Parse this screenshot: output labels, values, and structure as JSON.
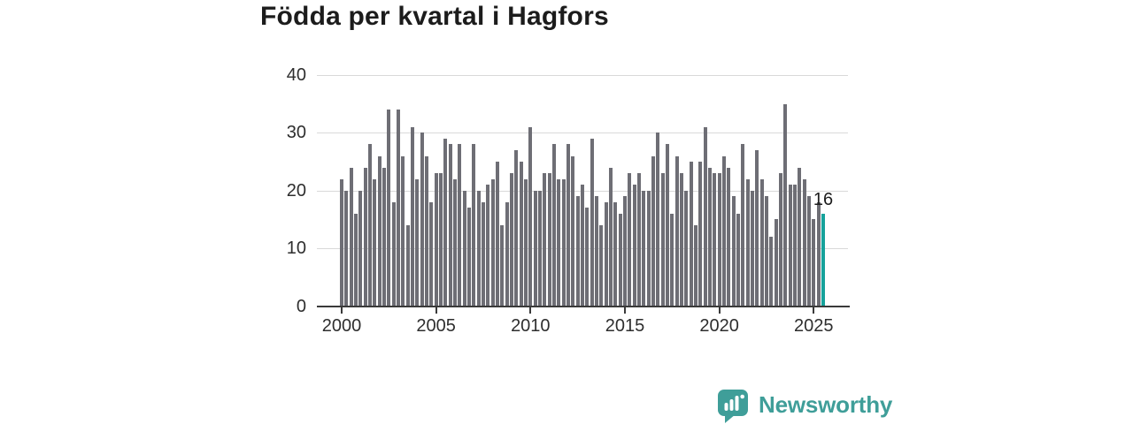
{
  "title": "Födda per kvartal i Hagfors",
  "branding": {
    "name": "Newsworthy",
    "icon": "newsworthy-chart-bubble-icon",
    "color": "#3f9e99"
  },
  "colors": {
    "bar": "#6e6e75",
    "highlight": "#16a29b",
    "grid": "#d9d9d9",
    "axis": "#3a3a3a",
    "text": "#1c1c1c",
    "tick_text": "#2e2e2e"
  },
  "chart_data": {
    "type": "bar",
    "title": "Födda per kvartal i Hagfors",
    "xlabel": "",
    "ylabel": "",
    "frequency": "quarterly",
    "start_quarter": "2000-Q1",
    "end_quarter": "2025-Q3",
    "xticks": [
      2000,
      2005,
      2010,
      2015,
      2020,
      2025
    ],
    "yticks": [
      0,
      10,
      20,
      30,
      40
    ],
    "ylim": [
      0,
      40
    ],
    "grid": true,
    "highlight_last_bar": true,
    "last_value_label": "16",
    "values": [
      22,
      20,
      24,
      16,
      20,
      24,
      28,
      22,
      26,
      24,
      34,
      18,
      34,
      26,
      14,
      31,
      22,
      30,
      26,
      18,
      23,
      23,
      29,
      28,
      22,
      28,
      20,
      17,
      28,
      20,
      18,
      21,
      22,
      25,
      14,
      18,
      23,
      27,
      25,
      22,
      31,
      20,
      20,
      23,
      23,
      28,
      22,
      22,
      28,
      26,
      19,
      21,
      17,
      29,
      19,
      14,
      18,
      24,
      18,
      16,
      19,
      23,
      21,
      23,
      20,
      20,
      26,
      30,
      23,
      28,
      16,
      26,
      23,
      20,
      25,
      14,
      25,
      31,
      24,
      23,
      23,
      26,
      24,
      19,
      16,
      28,
      22,
      20,
      27,
      22,
      19,
      12,
      15,
      23,
      35,
      21,
      21,
      24,
      22,
      19,
      15,
      18,
      16
    ]
  }
}
